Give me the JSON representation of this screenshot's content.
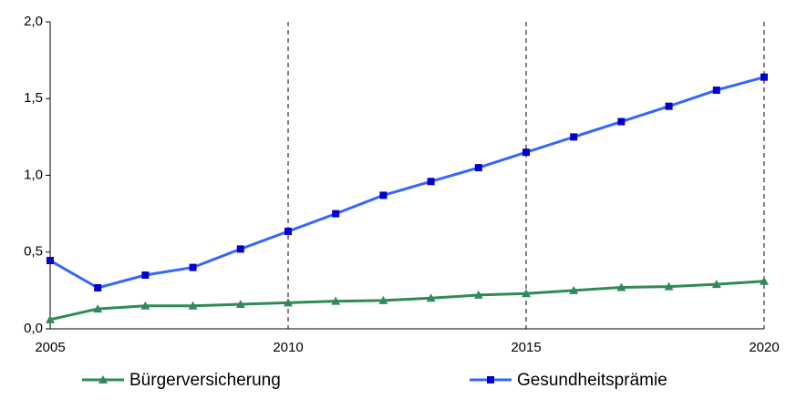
{
  "chart_data": {
    "type": "line",
    "x": [
      2005,
      2006,
      2007,
      2008,
      2009,
      2010,
      2011,
      2012,
      2013,
      2014,
      2015,
      2016,
      2017,
      2018,
      2019,
      2020
    ],
    "series": [
      {
        "name": "Bürgerversicherung",
        "color": "#2e8b57",
        "marker": "triangle",
        "marker_color": "#2e8b57",
        "values": [
          0.06,
          0.13,
          0.15,
          0.15,
          0.16,
          0.17,
          0.18,
          0.185,
          0.2,
          0.22,
          0.23,
          0.25,
          0.27,
          0.275,
          0.29,
          0.31
        ]
      },
      {
        "name": "Gesundheitsprämie",
        "color": "#3366ff",
        "marker": "square",
        "marker_color": "#0000cc",
        "values": [
          0.445,
          0.267,
          0.35,
          0.4,
          0.52,
          0.635,
          0.75,
          0.87,
          0.96,
          1.05,
          1.15,
          1.25,
          1.35,
          1.45,
          1.555,
          1.64
        ]
      }
    ],
    "xlim": [
      2005,
      2020
    ],
    "xticks": [
      2005,
      2010,
      2015,
      2020
    ],
    "ylim": [
      0,
      2
    ],
    "yticks": [
      {
        "value": 0,
        "label": "0,0"
      },
      {
        "value": 0.5,
        "label": "0,5"
      },
      {
        "value": 1,
        "label": "1,0"
      },
      {
        "value": 1.5,
        "label": "1,5"
      },
      {
        "value": 2,
        "label": "2,0"
      }
    ],
    "x_grid": true,
    "grid_style": "dashed",
    "legend": "bottom"
  }
}
